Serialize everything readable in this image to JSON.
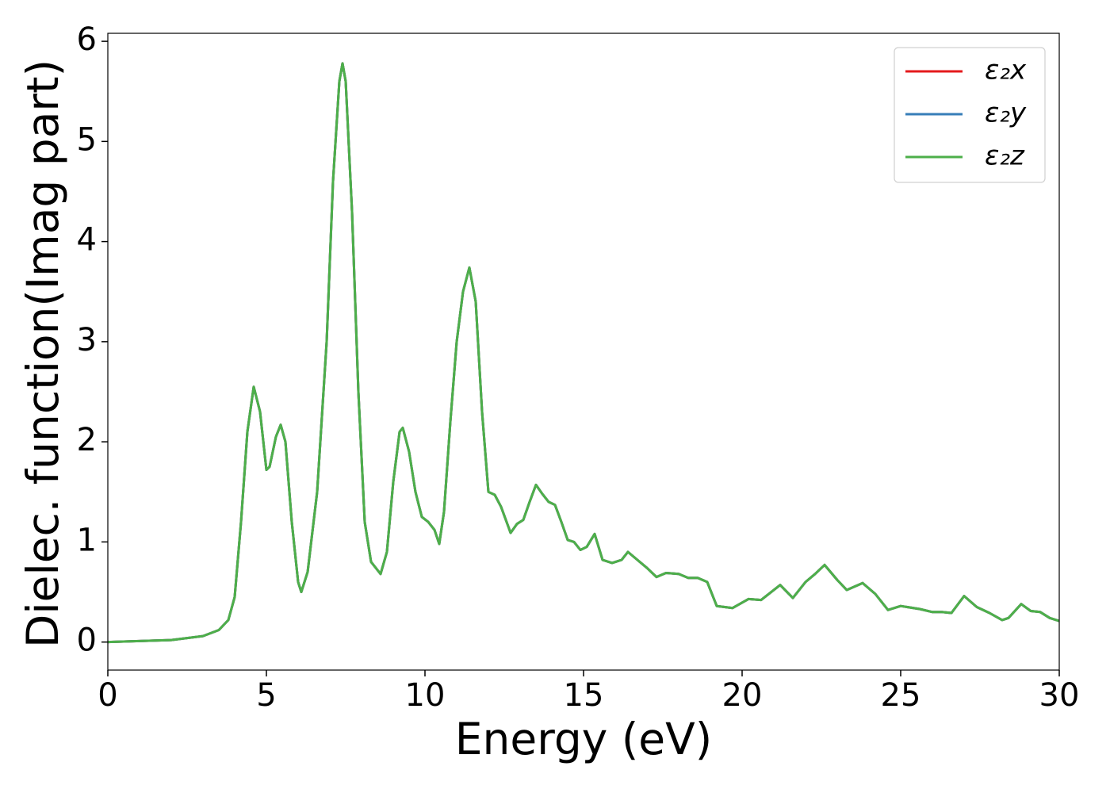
{
  "chart_data": {
    "type": "line",
    "x_label": "Energy (eV)",
    "y_label": "Dielec. function(Imag part)",
    "x": [
      0,
      2,
      3,
      3.5,
      3.8,
      4.0,
      4.2,
      4.4,
      4.6,
      4.8,
      5.0,
      5.1,
      5.3,
      5.45,
      5.6,
      5.8,
      6.0,
      6.1,
      6.3,
      6.6,
      6.9,
      7.1,
      7.3,
      7.4,
      7.5,
      7.7,
      7.9,
      8.1,
      8.3,
      8.6,
      8.8,
      9.0,
      9.2,
      9.3,
      9.5,
      9.7,
      9.9,
      10.1,
      10.3,
      10.45,
      10.6,
      10.8,
      11.0,
      11.2,
      11.4,
      11.6,
      11.8,
      12.0,
      12.2,
      12.4,
      12.7,
      12.9,
      13.1,
      13.3,
      13.5,
      13.7,
      13.9,
      14.1,
      14.3,
      14.5,
      14.7,
      14.9,
      15.1,
      15.35,
      15.6,
      15.9,
      16.2,
      16.4,
      16.7,
      17.0,
      17.3,
      17.6,
      18.0,
      18.3,
      18.6,
      18.9,
      19.2,
      19.7,
      20.2,
      20.6,
      21.2,
      21.6,
      22.0,
      22.3,
      22.6,
      23.0,
      23.3,
      23.8,
      24.2,
      24.6,
      25.0,
      25.6,
      26.0,
      26.3,
      26.6,
      27.0,
      27.4,
      27.8,
      28.2,
      28.4,
      28.8,
      29.1,
      29.4,
      29.7,
      30.0
    ],
    "series": [
      {
        "name": "ε₂x",
        "color": "#e41a1c",
        "values": [
          0,
          0.02,
          0.06,
          0.12,
          0.22,
          0.45,
          1.2,
          2.1,
          2.55,
          2.3,
          1.72,
          1.75,
          2.05,
          2.17,
          2.0,
          1.2,
          0.6,
          0.5,
          0.7,
          1.5,
          3.0,
          4.6,
          5.6,
          5.78,
          5.6,
          4.3,
          2.5,
          1.2,
          0.8,
          0.68,
          0.9,
          1.6,
          2.1,
          2.14,
          1.9,
          1.5,
          1.25,
          1.2,
          1.12,
          0.98,
          1.3,
          2.2,
          3.0,
          3.5,
          3.74,
          3.4,
          2.3,
          1.5,
          1.47,
          1.35,
          1.09,
          1.18,
          1.22,
          1.4,
          1.57,
          1.48,
          1.4,
          1.37,
          1.2,
          1.02,
          1.0,
          0.92,
          0.95,
          1.08,
          0.82,
          0.79,
          0.82,
          0.9,
          0.82,
          0.74,
          0.65,
          0.69,
          0.68,
          0.64,
          0.64,
          0.6,
          0.36,
          0.34,
          0.43,
          0.42,
          0.57,
          0.44,
          0.6,
          0.68,
          0.77,
          0.62,
          0.52,
          0.59,
          0.48,
          0.32,
          0.36,
          0.33,
          0.3,
          0.3,
          0.29,
          0.46,
          0.35,
          0.29,
          0.22,
          0.24,
          0.38,
          0.31,
          0.3,
          0.24,
          0.21
        ]
      },
      {
        "name": "ε₂y",
        "color": "#377eb8",
        "values": [
          0,
          0.02,
          0.06,
          0.12,
          0.22,
          0.45,
          1.2,
          2.1,
          2.55,
          2.3,
          1.72,
          1.75,
          2.05,
          2.17,
          2.0,
          1.2,
          0.6,
          0.5,
          0.7,
          1.5,
          3.0,
          4.6,
          5.6,
          5.78,
          5.6,
          4.3,
          2.5,
          1.2,
          0.8,
          0.68,
          0.9,
          1.6,
          2.1,
          2.14,
          1.9,
          1.5,
          1.25,
          1.2,
          1.12,
          0.98,
          1.3,
          2.2,
          3.0,
          3.5,
          3.74,
          3.4,
          2.3,
          1.5,
          1.47,
          1.35,
          1.09,
          1.18,
          1.22,
          1.4,
          1.57,
          1.48,
          1.4,
          1.37,
          1.2,
          1.02,
          1.0,
          0.92,
          0.95,
          1.08,
          0.82,
          0.79,
          0.82,
          0.9,
          0.82,
          0.74,
          0.65,
          0.69,
          0.68,
          0.64,
          0.64,
          0.6,
          0.36,
          0.34,
          0.43,
          0.42,
          0.57,
          0.44,
          0.6,
          0.68,
          0.77,
          0.62,
          0.52,
          0.59,
          0.48,
          0.32,
          0.36,
          0.33,
          0.3,
          0.3,
          0.29,
          0.46,
          0.35,
          0.29,
          0.22,
          0.24,
          0.38,
          0.31,
          0.3,
          0.24,
          0.21
        ]
      },
      {
        "name": "ε₂z",
        "color": "#4daf4a",
        "values": [
          0,
          0.02,
          0.06,
          0.12,
          0.22,
          0.45,
          1.2,
          2.1,
          2.55,
          2.3,
          1.72,
          1.75,
          2.05,
          2.17,
          2.0,
          1.2,
          0.6,
          0.5,
          0.7,
          1.5,
          3.0,
          4.6,
          5.6,
          5.78,
          5.6,
          4.3,
          2.5,
          1.2,
          0.8,
          0.68,
          0.9,
          1.6,
          2.1,
          2.14,
          1.9,
          1.5,
          1.25,
          1.2,
          1.12,
          0.98,
          1.3,
          2.2,
          3.0,
          3.5,
          3.74,
          3.4,
          2.3,
          1.5,
          1.47,
          1.35,
          1.09,
          1.18,
          1.22,
          1.4,
          1.57,
          1.48,
          1.4,
          1.37,
          1.2,
          1.02,
          1.0,
          0.92,
          0.95,
          1.08,
          0.82,
          0.79,
          0.82,
          0.9,
          0.82,
          0.74,
          0.65,
          0.69,
          0.68,
          0.64,
          0.64,
          0.6,
          0.36,
          0.34,
          0.43,
          0.42,
          0.57,
          0.44,
          0.6,
          0.68,
          0.77,
          0.62,
          0.52,
          0.59,
          0.48,
          0.32,
          0.36,
          0.33,
          0.3,
          0.3,
          0.29,
          0.46,
          0.35,
          0.29,
          0.22,
          0.24,
          0.38,
          0.31,
          0.3,
          0.24,
          0.21
        ]
      }
    ],
    "xlim": [
      0,
      30
    ],
    "xticks": [
      0,
      5,
      10,
      15,
      20,
      25,
      30
    ],
    "ylim": [
      -0.28,
      6.08
    ],
    "yticks": [
      0,
      1,
      2,
      3,
      4,
      5,
      6
    ],
    "grid": false,
    "legend": "upper right"
  }
}
